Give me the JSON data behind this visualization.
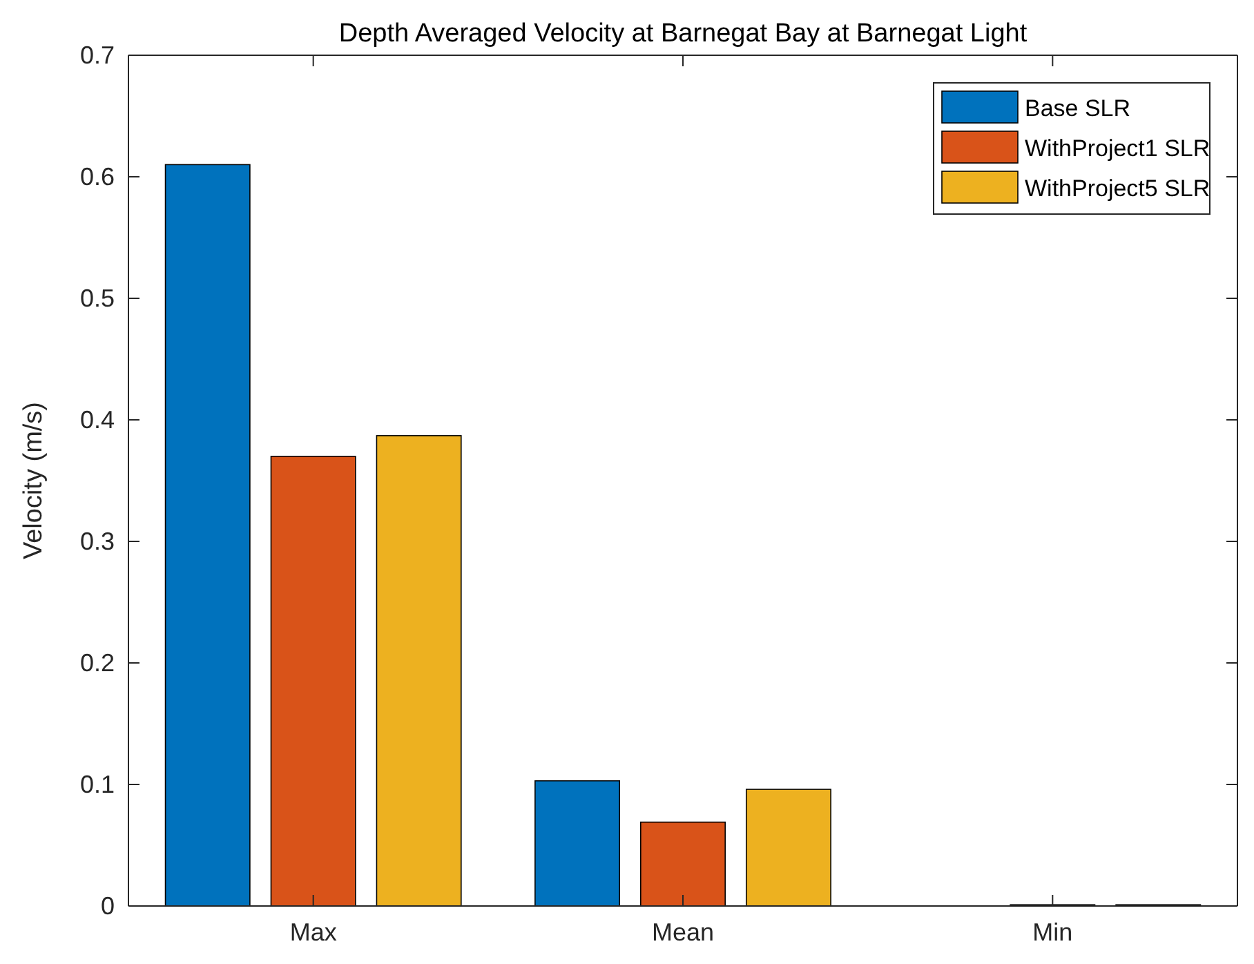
{
  "chart_data": {
    "type": "bar",
    "title": "Depth Averaged Velocity at Barnegat Bay at Barnegat Light",
    "ylabel": "Velocity (m/s)",
    "categories": [
      "Max",
      "Mean",
      "Min"
    ],
    "series": [
      {
        "name": "Base SLR",
        "color": "#0072bd",
        "values": [
          0.61,
          0.103,
          0
        ]
      },
      {
        "name": "WithProject1 SLR",
        "color": "#d95319",
        "values": [
          0.37,
          0.069,
          0.001
        ]
      },
      {
        "name": "WithProject5 SLR",
        "color": "#edb120",
        "values": [
          0.387,
          0.096,
          0.001
        ]
      }
    ],
    "ylim": [
      0,
      0.7
    ],
    "yticks": [
      0,
      0.1,
      0.2,
      0.3,
      0.4,
      0.5,
      0.6,
      0.7
    ],
    "legend": "top right"
  }
}
